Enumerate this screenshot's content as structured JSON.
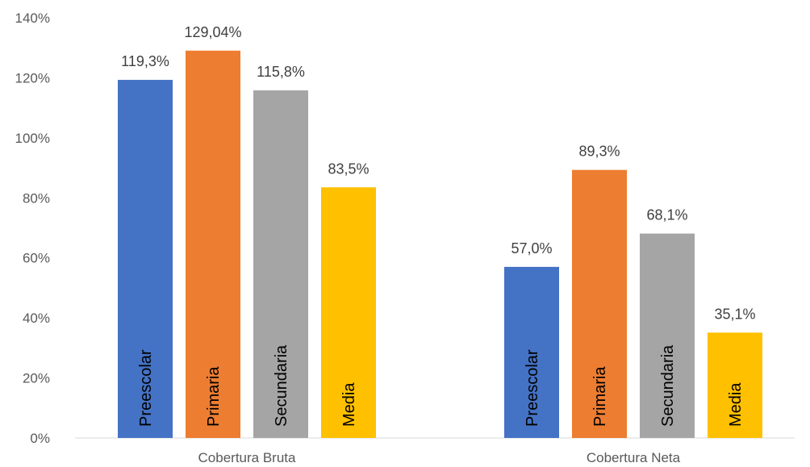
{
  "chart_data": {
    "type": "bar",
    "title": "",
    "xlabel": "",
    "ylabel": "",
    "ylim": [
      0,
      140
    ],
    "yticks": [
      0,
      20,
      40,
      60,
      80,
      100,
      120,
      140
    ],
    "ytick_labels": [
      "0%",
      "20%",
      "40%",
      "60%",
      "80%",
      "100%",
      "120%",
      "140%"
    ],
    "grid": false,
    "legend": "none (series names shown inside bars)",
    "categories": [
      "Cobertura Bruta",
      "Cobertura Neta"
    ],
    "series": [
      {
        "name": "Preescolar",
        "color": "#4472C4",
        "values": [
          119.3,
          57.0
        ],
        "labels": [
          "119,3%",
          "57,0%"
        ]
      },
      {
        "name": "Primaria",
        "color": "#ED7D31",
        "values": [
          129.04,
          89.3
        ],
        "labels": [
          "129,04%",
          "89,3%"
        ]
      },
      {
        "name": "Secundaria",
        "color": "#A5A5A5",
        "values": [
          115.8,
          68.1
        ],
        "labels": [
          "115,8%",
          "68,1%"
        ]
      },
      {
        "name": "Media",
        "color": "#FFC000",
        "values": [
          83.5,
          35.1
        ],
        "labels": [
          "83,5%",
          "35,1%"
        ]
      }
    ]
  }
}
